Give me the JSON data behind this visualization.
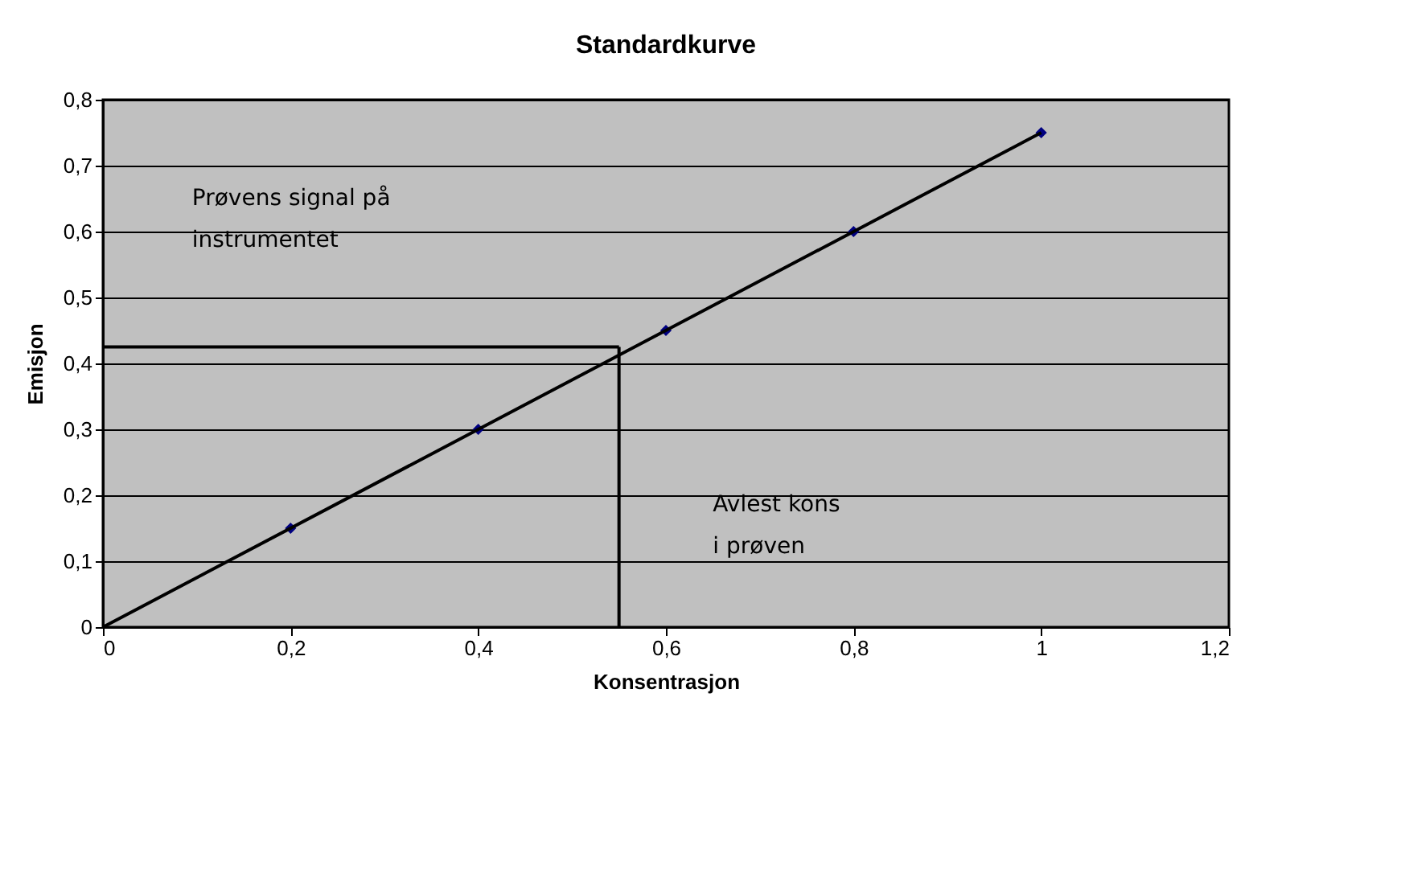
{
  "chart_data": {
    "type": "scatter",
    "title": "Standardkurve",
    "xlabel": "Konsentrasjon",
    "ylabel": "Emisjon",
    "x": [
      0.2,
      0.4,
      0.6,
      0.8,
      1
    ],
    "series": [
      {
        "color": "#000080",
        "marker": "diamond",
        "values": [
          0.15,
          0.3,
          0.45,
          0.6,
          0.75
        ]
      },
      {
        "type": "line",
        "color": "#000000",
        "x": [
          0,
          1
        ],
        "values": [
          0,
          0.75
        ]
      },
      {
        "type": "line",
        "color": "#000000",
        "x": [
          0,
          0.55
        ],
        "values": [
          0.425,
          0.425
        ]
      },
      {
        "type": "line",
        "color": "#000000",
        "x": [
          0.55,
          0.55
        ],
        "values": [
          0.425,
          0
        ]
      }
    ],
    "annotations": [
      "Prøvens signal på instrumentet",
      "Avlest kons i prøven"
    ],
    "xlim": [
      0,
      1.2
    ],
    "xticks": [
      {
        "value": 0,
        "label": "0"
      },
      {
        "value": 0.2,
        "label": "0,2"
      },
      {
        "value": 0.4,
        "label": "0,4"
      },
      {
        "value": 0.6,
        "label": "0,6"
      },
      {
        "value": 0.8,
        "label": "0,8"
      },
      {
        "value": 1,
        "label": "1"
      },
      {
        "value": 1.2,
        "label": "1,2"
      }
    ],
    "ylim": [
      0,
      0.8
    ],
    "yticks": [
      {
        "value": 0,
        "label": "0"
      },
      {
        "value": 0.1,
        "label": "0,1"
      },
      {
        "value": 0.2,
        "label": "0,2"
      },
      {
        "value": 0.3,
        "label": "0,3"
      },
      {
        "value": 0.4,
        "label": "0,4"
      },
      {
        "value": 0.5,
        "label": "0,5"
      },
      {
        "value": 0.6,
        "label": "0,6"
      },
      {
        "value": 0.7,
        "label": "0,7"
      },
      {
        "value": 0.8,
        "label": "0,8"
      }
    ],
    "grid": "y"
  }
}
